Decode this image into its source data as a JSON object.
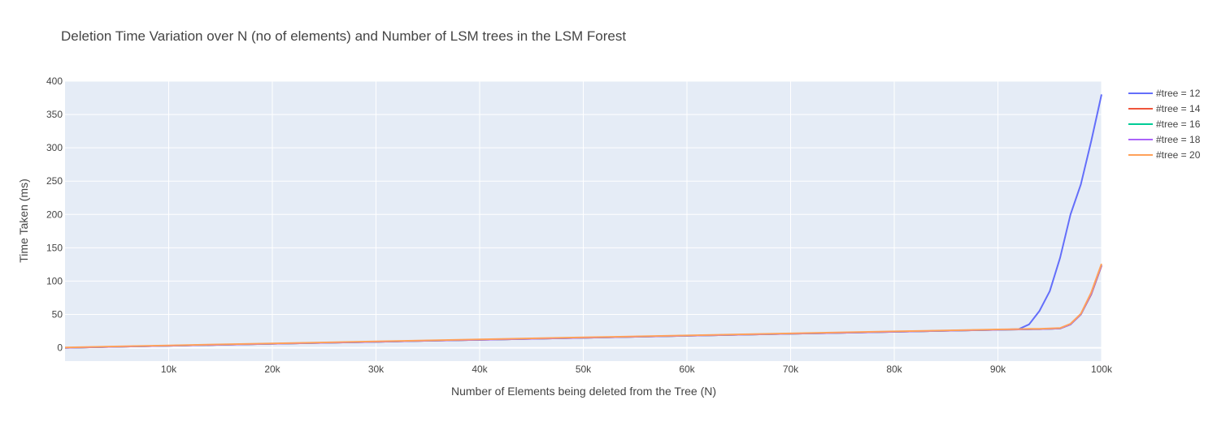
{
  "chart_data": {
    "type": "line",
    "title": "Deletion Time Variation over N (no of elements) and Number of LSM trees in the LSM Forest",
    "xlabel": "Number of Elements being deleted from the Tree (N)",
    "ylabel": "Time Taken (ms)",
    "xlim": [
      0,
      100000
    ],
    "ylim": [
      -20,
      400
    ],
    "x_ticks": [
      10000,
      20000,
      30000,
      40000,
      50000,
      60000,
      70000,
      80000,
      90000,
      100000
    ],
    "x_tick_labels": [
      "10k",
      "20k",
      "30k",
      "40k",
      "50k",
      "60k",
      "70k",
      "80k",
      "90k",
      "100k"
    ],
    "y_ticks": [
      0,
      50,
      100,
      150,
      200,
      250,
      300,
      350,
      400
    ],
    "y_tick_labels": [
      "0",
      "50",
      "100",
      "150",
      "200",
      "250",
      "300",
      "350",
      "400"
    ],
    "grid": true,
    "legend_position": "right",
    "x": [
      0,
      10000,
      20000,
      30000,
      40000,
      50000,
      60000,
      70000,
      80000,
      90000,
      92000,
      93000,
      94000,
      95000,
      96000,
      97000,
      98000,
      99000,
      100000
    ],
    "series": [
      {
        "name": "#tree = 12",
        "color": "#636efa",
        "values": [
          0,
          3,
          6,
          9,
          12,
          15,
          18,
          21,
          24,
          27,
          28,
          35,
          55,
          85,
          135,
          200,
          245,
          310,
          380
        ]
      },
      {
        "name": "#tree = 14",
        "color": "#ef553b",
        "values": [
          0,
          3,
          6,
          9,
          12,
          15,
          18,
          21,
          24,
          27,
          27.5,
          27.8,
          28,
          28.5,
          29,
          35,
          50,
          80,
          123
        ]
      },
      {
        "name": "#tree = 16",
        "color": "#00cc96",
        "values": [
          0,
          3,
          6,
          9,
          12,
          15,
          18,
          21,
          24,
          27,
          27.5,
          27.8,
          28,
          28.5,
          29,
          35,
          50,
          81,
          124
        ]
      },
      {
        "name": "#tree = 18",
        "color": "#ab63fa",
        "values": [
          0,
          3,
          6,
          9,
          12,
          15,
          18,
          21,
          24,
          27,
          27.5,
          27.8,
          28,
          28.5,
          29,
          35,
          50,
          81,
          124
        ]
      },
      {
        "name": "#tree = 20",
        "color": "#ffa15a",
        "values": [
          0.5,
          3.5,
          6.5,
          9.5,
          12.5,
          15.5,
          18.5,
          21.5,
          24.5,
          27.5,
          28,
          28.3,
          28.5,
          29,
          29.5,
          36,
          51,
          83,
          126
        ]
      }
    ]
  }
}
